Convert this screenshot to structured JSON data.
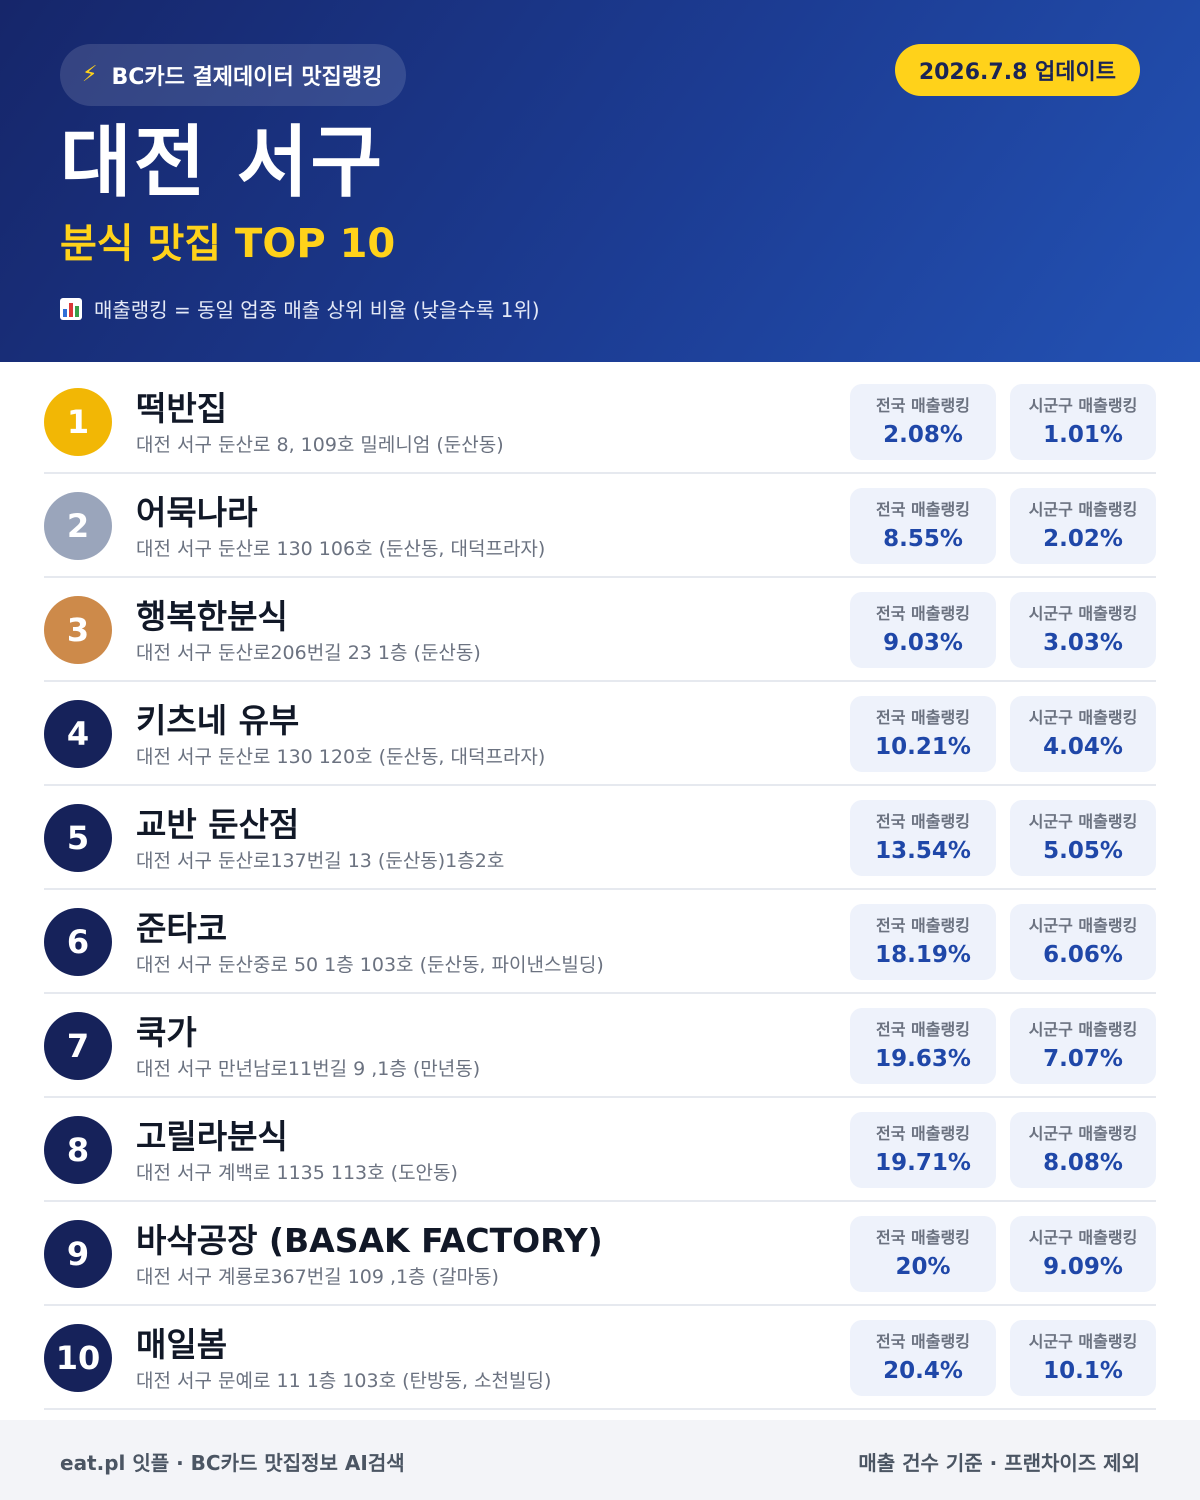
{
  "header": {
    "source_label": "BC카드 결제데이터 맛집랭킹",
    "source_icon": "lightning-icon",
    "update_label": "2026.7.8 업데이트",
    "region": "대전 서구",
    "subtitle": "분식 맛집 TOP 10",
    "note_icon": "bar-chart-icon",
    "note": "매출랭킹 = 동일 업종 매출 상위 비율 (낮을수록 1위)"
  },
  "colors": {
    "header_bg": "#1c3c93",
    "accent_yellow": "#ffd21a",
    "rank_gold": "#f2b705",
    "rank_silver": "#9aa5bb",
    "rank_bronze": "#cd8a4a",
    "rank_default": "#16225a",
    "stat_value": "#1f47a8"
  },
  "stat_labels": {
    "national": "전국 매출랭킹",
    "local": "시군구 매출랭킹"
  },
  "restaurants": [
    {
      "rank": "1",
      "badge": "gold",
      "name": "떡반집",
      "address": "대전 서구 둔산로 8, 109호 밀레니엄 (둔산동)",
      "national": "2.08%",
      "local": "1.01%"
    },
    {
      "rank": "2",
      "badge": "silver",
      "name": "어묵나라",
      "address": "대전 서구 둔산로 130 106호 (둔산동, 대덕프라자)",
      "national": "8.55%",
      "local": "2.02%"
    },
    {
      "rank": "3",
      "badge": "bronze",
      "name": "행복한분식",
      "address": "대전 서구 둔산로206번길 23 1층 (둔산동)",
      "national": "9.03%",
      "local": "3.03%"
    },
    {
      "rank": "4",
      "badge": "default",
      "name": "키츠네 유부",
      "address": "대전 서구 둔산로 130 120호 (둔산동, 대덕프라자)",
      "national": "10.21%",
      "local": "4.04%"
    },
    {
      "rank": "5",
      "badge": "default",
      "name": "교반 둔산점",
      "address": "대전 서구 둔산로137번길 13 (둔산동)1층2호",
      "national": "13.54%",
      "local": "5.05%"
    },
    {
      "rank": "6",
      "badge": "default",
      "name": "준타코",
      "address": "대전 서구 둔산중로 50 1층 103호 (둔산동, 파이낸스빌딩)",
      "national": "18.19%",
      "local": "6.06%"
    },
    {
      "rank": "7",
      "badge": "default",
      "name": "쿡가",
      "address": "대전 서구 만년남로11번길 9 ,1층 (만년동)",
      "national": "19.63%",
      "local": "7.07%"
    },
    {
      "rank": "8",
      "badge": "default",
      "name": "고릴라분식",
      "address": "대전 서구 계백로 1135 113호 (도안동)",
      "national": "19.71%",
      "local": "8.08%"
    },
    {
      "rank": "9",
      "badge": "default",
      "name": "바삭공장 (BASAK FACTORY)",
      "address": "대전 서구 계룡로367번길 109 ,1층 (갈마동)",
      "national": "20%",
      "local": "9.09%"
    },
    {
      "rank": "10",
      "badge": "default",
      "name": "매일봄",
      "address": "대전 서구 문예로 11 1층 103호 (탄방동, 소천빌딩)",
      "national": "20.4%",
      "local": "10.1%"
    }
  ],
  "footer": {
    "left": "eat.pl 잇플 · BC카드 맛집정보 AI검색",
    "right": "매출 건수 기준 · 프랜차이즈 제외"
  }
}
